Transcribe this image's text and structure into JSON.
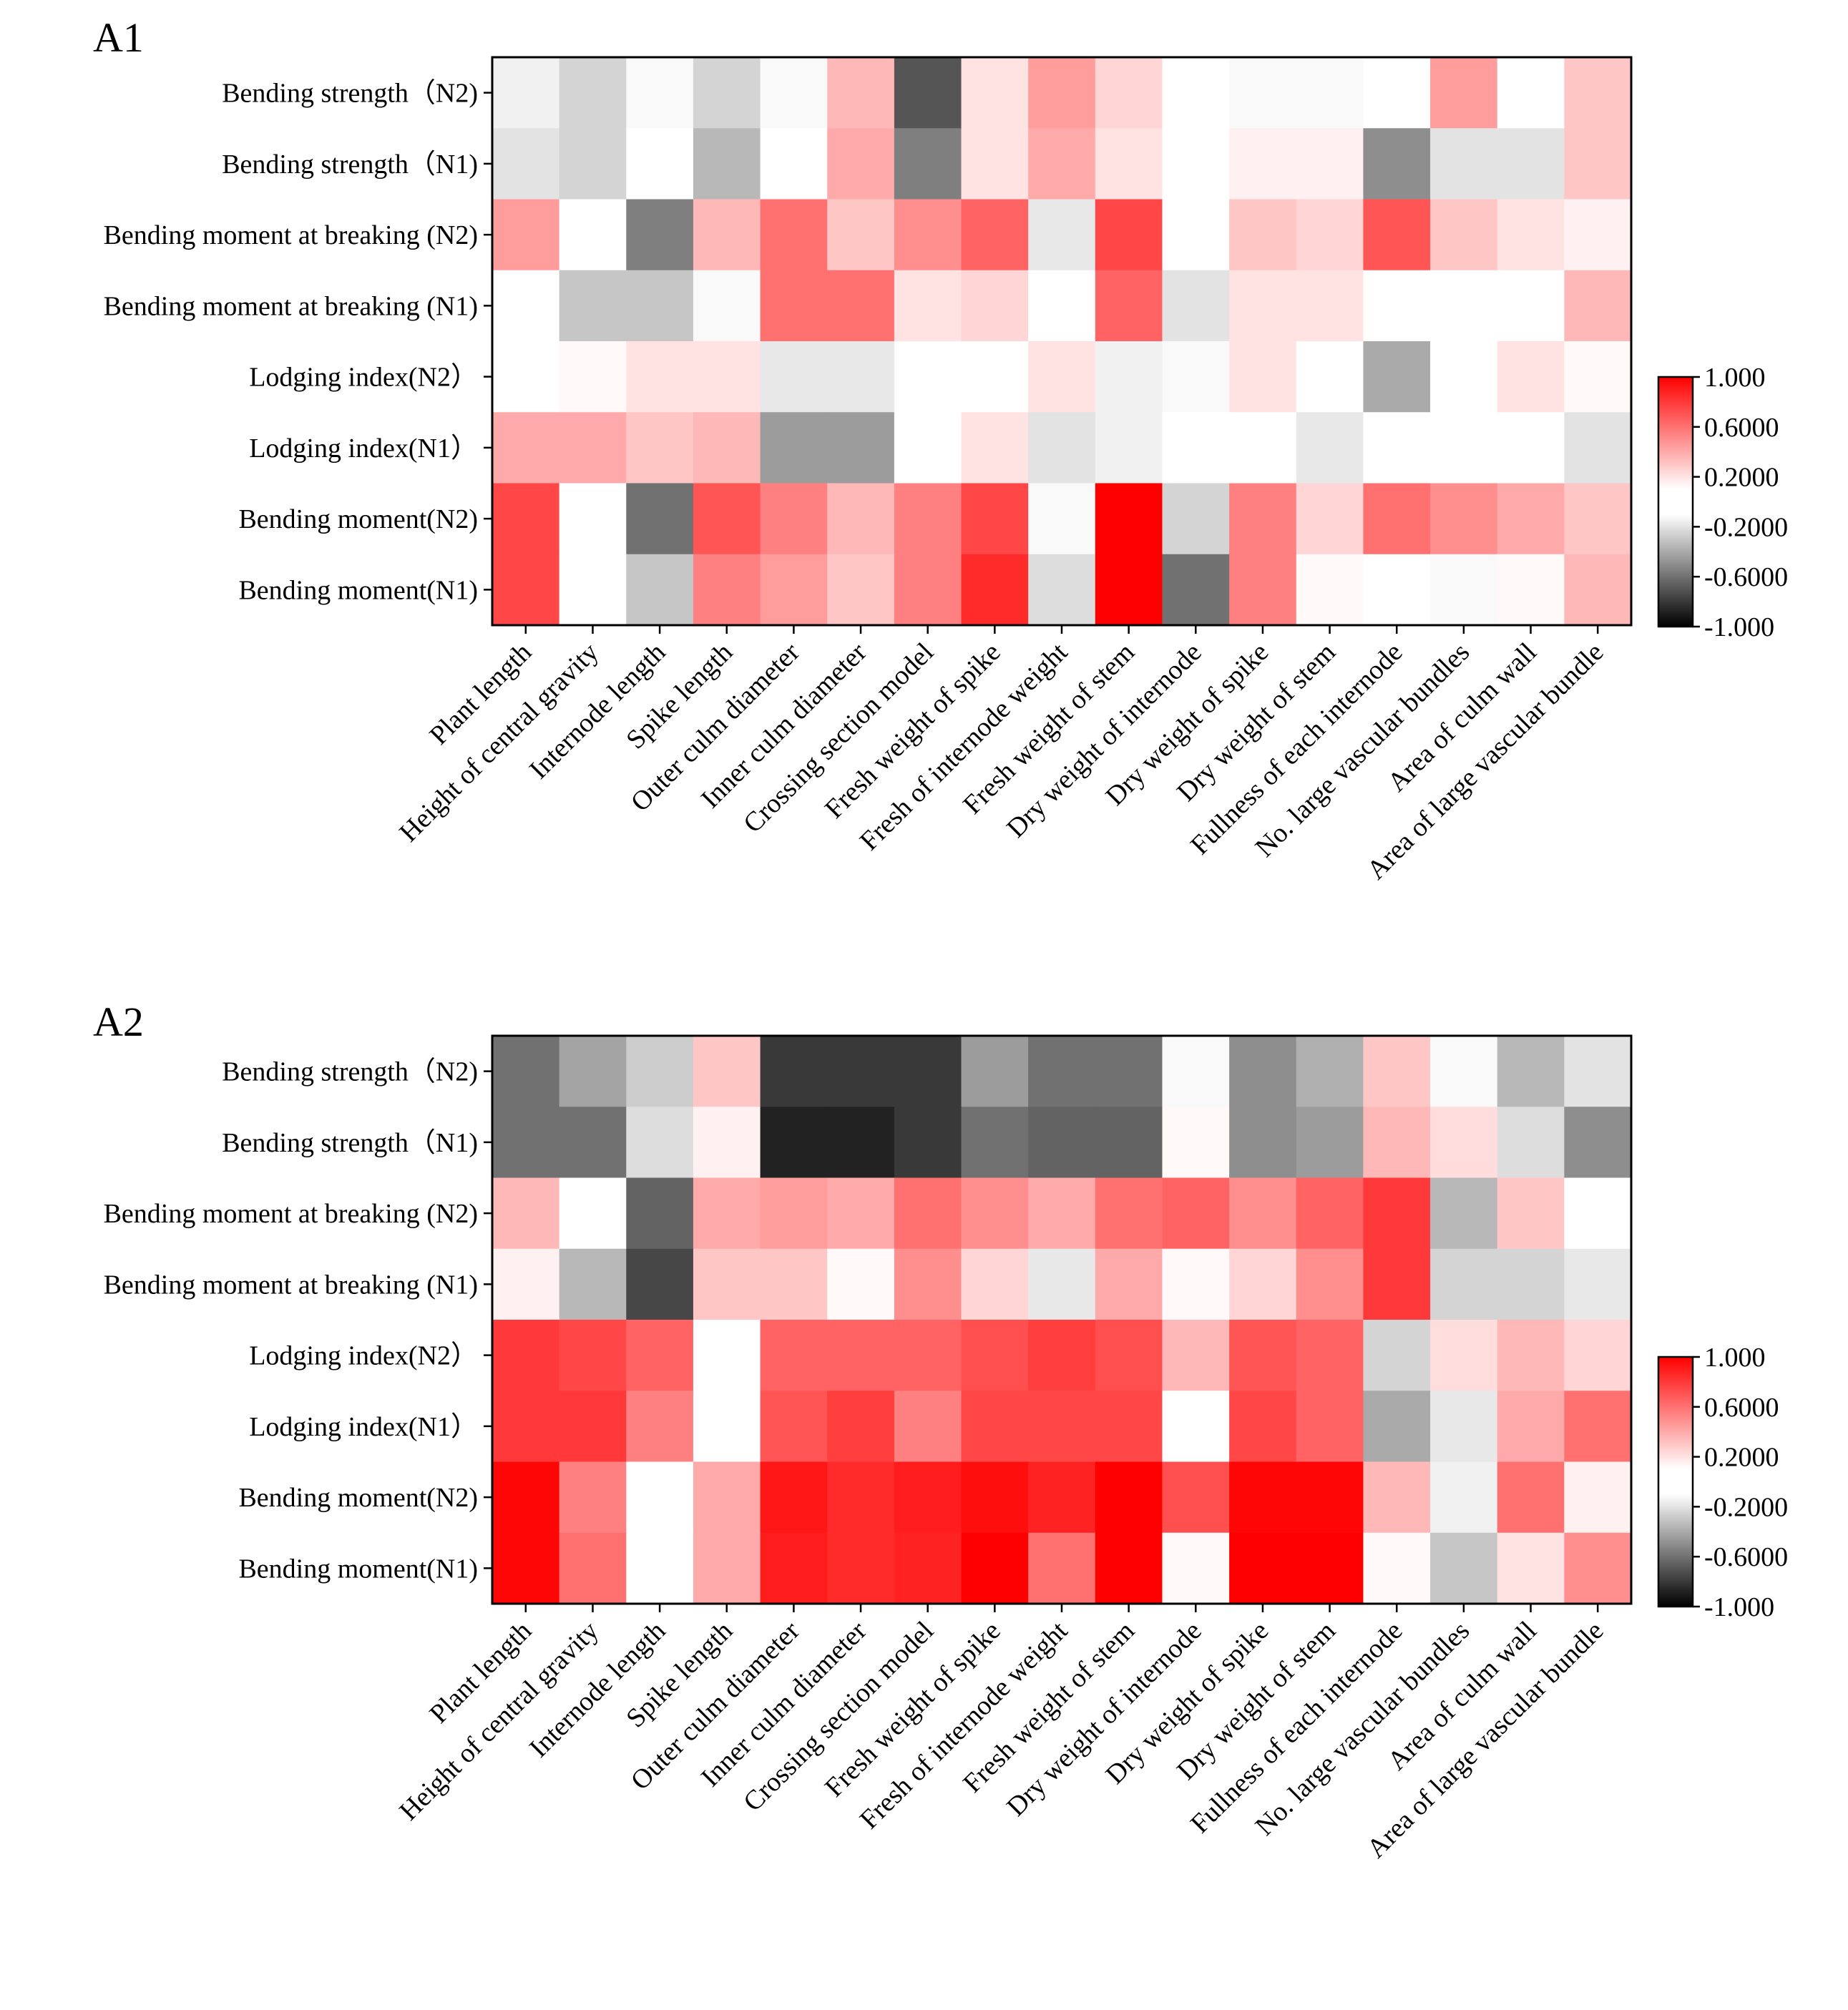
{
  "chart_data": [
    {
      "type": "heatmap",
      "panel_label": "A1",
      "rows": [
        "Bending strength（N2)",
        "Bending strength（N1)",
        "Bending moment at breaking (N2)",
        "Bending moment at breaking (N1)",
        "Lodging index(N2）",
        "Lodging index(N1）",
        "Bending moment(N2)",
        "Bending moment(N1)"
      ],
      "columns": [
        "Plant length",
        "Height of central gravity",
        "Internode length",
        "Spike length",
        "Outer culm diameter",
        "Inner culm diameter",
        "Crossing section model",
        "Fresh weight of spike",
        "Fresh of internode weight",
        "Fresh weight of stem",
        "Dry weight of internode",
        "Dry weight of spike",
        "Dry weight of stem",
        "Fullness of each internode",
        "No. large vascular bundles",
        "Area of culm wall",
        "Area of large vascular bundle"
      ],
      "values": [
        [
          -0.15,
          -0.25,
          -0.12,
          -0.25,
          -0.12,
          0.35,
          -0.7,
          0.2,
          0.45,
          0.25,
          -0.05,
          -0.12,
          -0.12,
          0.05,
          0.45,
          0.05,
          0.3
        ],
        [
          -0.2,
          -0.25,
          0.1,
          -0.35,
          0.05,
          0.4,
          -0.55,
          0.2,
          0.4,
          0.2,
          -0.1,
          0.15,
          0.15,
          -0.5,
          -0.2,
          -0.2,
          0.3
        ],
        [
          0.45,
          -0.05,
          -0.55,
          0.35,
          0.6,
          0.3,
          0.5,
          0.65,
          -0.18,
          0.75,
          0.05,
          0.3,
          0.25,
          0.7,
          0.3,
          0.2,
          0.15
        ],
        [
          -0.05,
          -0.3,
          -0.3,
          -0.12,
          0.6,
          0.6,
          0.2,
          0.25,
          0.1,
          0.65,
          -0.2,
          0.2,
          0.2,
          0.05,
          -0.05,
          0.05,
          0.35
        ],
        [
          0.05,
          0.12,
          0.2,
          0.2,
          -0.18,
          -0.18,
          -0.05,
          0.05,
          0.2,
          -0.15,
          -0.12,
          0.2,
          0.05,
          -0.4,
          -0.05,
          0.2,
          0.12
        ],
        [
          0.4,
          0.4,
          0.3,
          0.35,
          -0.45,
          -0.45,
          -0.1,
          0.2,
          -0.2,
          -0.15,
          0.1,
          0.05,
          -0.18,
          -0.1,
          0.1,
          0.05,
          -0.2
        ],
        [
          0.75,
          0.05,
          -0.6,
          0.7,
          0.55,
          0.35,
          0.55,
          0.75,
          -0.12,
          1.0,
          -0.25,
          0.55,
          0.25,
          0.6,
          0.5,
          0.4,
          0.3
        ],
        [
          0.75,
          0.05,
          -0.3,
          0.55,
          0.45,
          0.3,
          0.55,
          0.85,
          -0.22,
          1.0,
          -0.6,
          0.55,
          0.12,
          0.05,
          -0.12,
          0.12,
          0.35
        ]
      ],
      "colorbar": {
        "ticks": [
          "1.000",
          "0.6000",
          "0.2000",
          "-0.2000",
          "-0.6000",
          "-1.000"
        ],
        "vmin": -1.0,
        "vmax": 1.0
      }
    },
    {
      "type": "heatmap",
      "panel_label": "A2",
      "rows": [
        "Bending strength（N2)",
        "Bending strength（N1)",
        "Bending moment at breaking (N2)",
        "Bending moment at breaking (N1)",
        "Lodging index(N2）",
        "Lodging index(N1）",
        "Bending moment(N2)",
        "Bending moment(N1)"
      ],
      "columns": [
        "Plant length",
        "Height of central gravity",
        "Internode length",
        "Spike length",
        "Outer culm diameter",
        "Inner culm diameter",
        "Crossing section model",
        "Fresh weight of spike",
        "Fresh of internode weight",
        "Fresh weight of stem",
        "Dry weight of internode",
        "Dry weight of spike",
        "Dry weight of stem",
        "Fullness of each internode",
        "No. large vascular bundles",
        "Area of culm wall",
        "Area of large vascular bundle"
      ],
      "values": [
        [
          -0.6,
          -0.42,
          -0.28,
          0.3,
          -0.8,
          -0.8,
          -0.8,
          -0.45,
          -0.6,
          -0.6,
          -0.12,
          -0.5,
          -0.38,
          0.3,
          -0.12,
          -0.35,
          -0.2
        ],
        [
          -0.6,
          -0.6,
          -0.22,
          0.15,
          -0.88,
          -0.88,
          -0.8,
          -0.6,
          -0.65,
          -0.65,
          0.12,
          -0.5,
          -0.45,
          0.35,
          0.22,
          -0.22,
          -0.5
        ],
        [
          0.35,
          -0.05,
          -0.65,
          0.4,
          0.45,
          0.4,
          0.6,
          0.5,
          0.4,
          0.6,
          0.65,
          0.5,
          0.65,
          0.8,
          -0.35,
          0.3,
          -0.05
        ],
        [
          0.15,
          -0.35,
          -0.75,
          0.3,
          0.3,
          0.12,
          0.5,
          0.25,
          -0.18,
          0.4,
          0.12,
          0.25,
          0.5,
          0.8,
          -0.25,
          -0.25,
          -0.18
        ],
        [
          0.8,
          0.75,
          0.65,
          0.05,
          0.65,
          0.65,
          0.65,
          0.72,
          0.78,
          0.72,
          0.35,
          0.7,
          0.65,
          -0.25,
          0.22,
          0.35,
          0.25
        ],
        [
          0.8,
          0.8,
          0.55,
          -0.05,
          0.7,
          0.78,
          0.55,
          0.75,
          0.75,
          0.75,
          -0.05,
          0.75,
          0.65,
          -0.4,
          -0.18,
          0.4,
          0.6
        ],
        [
          0.98,
          0.55,
          -0.1,
          0.4,
          0.92,
          0.85,
          0.9,
          0.95,
          0.88,
          1.0,
          0.72,
          0.98,
          0.98,
          0.35,
          -0.15,
          0.6,
          0.15
        ],
        [
          0.98,
          0.6,
          -0.1,
          0.4,
          0.9,
          0.85,
          0.88,
          1.0,
          0.6,
          1.0,
          0.12,
          1.0,
          1.0,
          0.12,
          -0.3,
          0.2,
          0.5
        ]
      ],
      "colorbar": {
        "ticks": [
          "1.000",
          "0.6000",
          "0.2000",
          "-0.2000",
          "-0.6000",
          "-1.000"
        ],
        "vmin": -1.0,
        "vmax": 1.0
      }
    }
  ]
}
